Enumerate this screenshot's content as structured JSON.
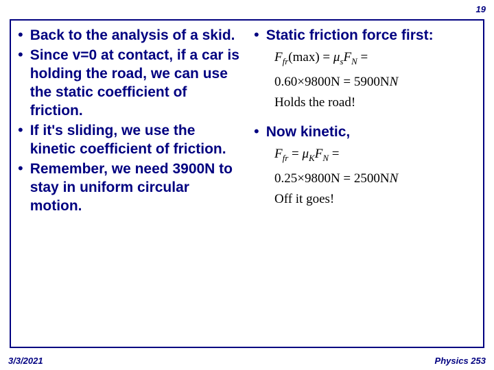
{
  "page_number": "19",
  "footer": {
    "date": "3/3/2021",
    "course": "Physics 253"
  },
  "colors": {
    "text_primary": "#000080",
    "equation_text": "#000000",
    "background": "#ffffff",
    "border": "#000080"
  },
  "left_column": {
    "bullets": [
      "Back to the analysis of a skid.",
      "Since v=0 at contact, if a car is holding the road, we can use the static coefficient of friction.",
      "If it's sliding, we use the kinetic coefficient of friction.",
      "Remember, we need 3900N to stay in uniform circular motion."
    ]
  },
  "right_column": {
    "section1": {
      "bullet": "Static friction force first:",
      "eq_line1_a": "F",
      "eq_line1_b": "fr",
      "eq_line1_c": "(max) = ",
      "eq_line1_d": "μ",
      "eq_line1_e": "s",
      "eq_line1_f": "F",
      "eq_line1_g": "N",
      "eq_line1_h": " =",
      "eq_line2": "0.60×9800N = 5900N",
      "eq_line3": "Holds the road!"
    },
    "section2": {
      "bullet": "Now kinetic,",
      "eq_line1_a": "F",
      "eq_line1_b": "fr",
      "eq_line1_c": " = ",
      "eq_line1_d": "μ",
      "eq_line1_e": "K",
      "eq_line1_f": "F",
      "eq_line1_g": "N",
      "eq_line1_h": " =",
      "eq_line2": "0.25×9800N = 2500N",
      "eq_line3": "Off it goes!"
    }
  }
}
